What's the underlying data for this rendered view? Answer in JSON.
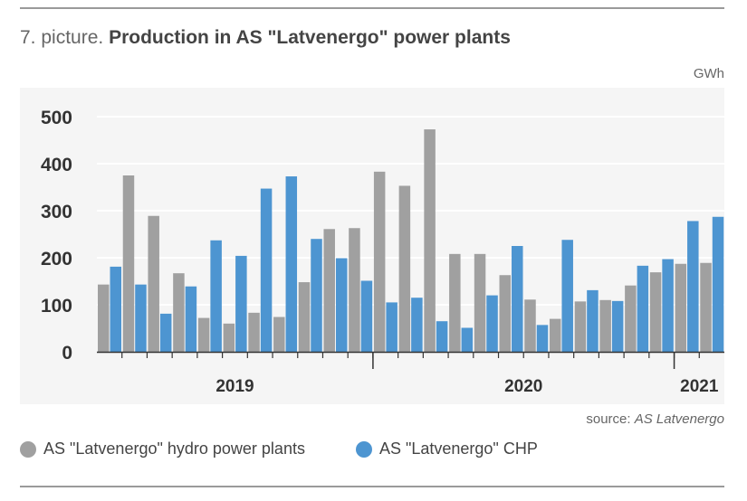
{
  "title": {
    "prefix": "7. picture.",
    "main": "Production in AS \"Latvenergo\" power plants"
  },
  "unit": "GWh",
  "source": {
    "prefix": "source:",
    "name": "AS Latvenergo"
  },
  "colors": {
    "hydro": "#a0a0a0",
    "chp": "#4d95d1",
    "grid": "#ffffff",
    "axis": "#333333"
  },
  "chart_data": {
    "type": "bar",
    "ylabel": "",
    "xlabel": "",
    "ylim": [
      0,
      500
    ],
    "yticks": [
      0,
      100,
      200,
      300,
      400,
      500
    ],
    "grid": true,
    "legend_position": "bottom-left",
    "year_labels": [
      "2019",
      "2020",
      "2021"
    ],
    "series": [
      {
        "name": "AS \"Latvenergo\" hydro power plants",
        "color": "#a0a0a0",
        "values": [
          143,
          375,
          289,
          167,
          72,
          60,
          83,
          74,
          148,
          261,
          263,
          383,
          353,
          473,
          208,
          208,
          163,
          111,
          70,
          107,
          110,
          141,
          169,
          187,
          189
        ]
      },
      {
        "name": "AS \"Latvenergo\" CHP",
        "color": "#4d95d1",
        "values": [
          181,
          143,
          81,
          139,
          237,
          204,
          347,
          373,
          240,
          199,
          151,
          105,
          115,
          65,
          51,
          120,
          225,
          57,
          238,
          131,
          108,
          183,
          197,
          278,
          287
        ]
      }
    ]
  }
}
